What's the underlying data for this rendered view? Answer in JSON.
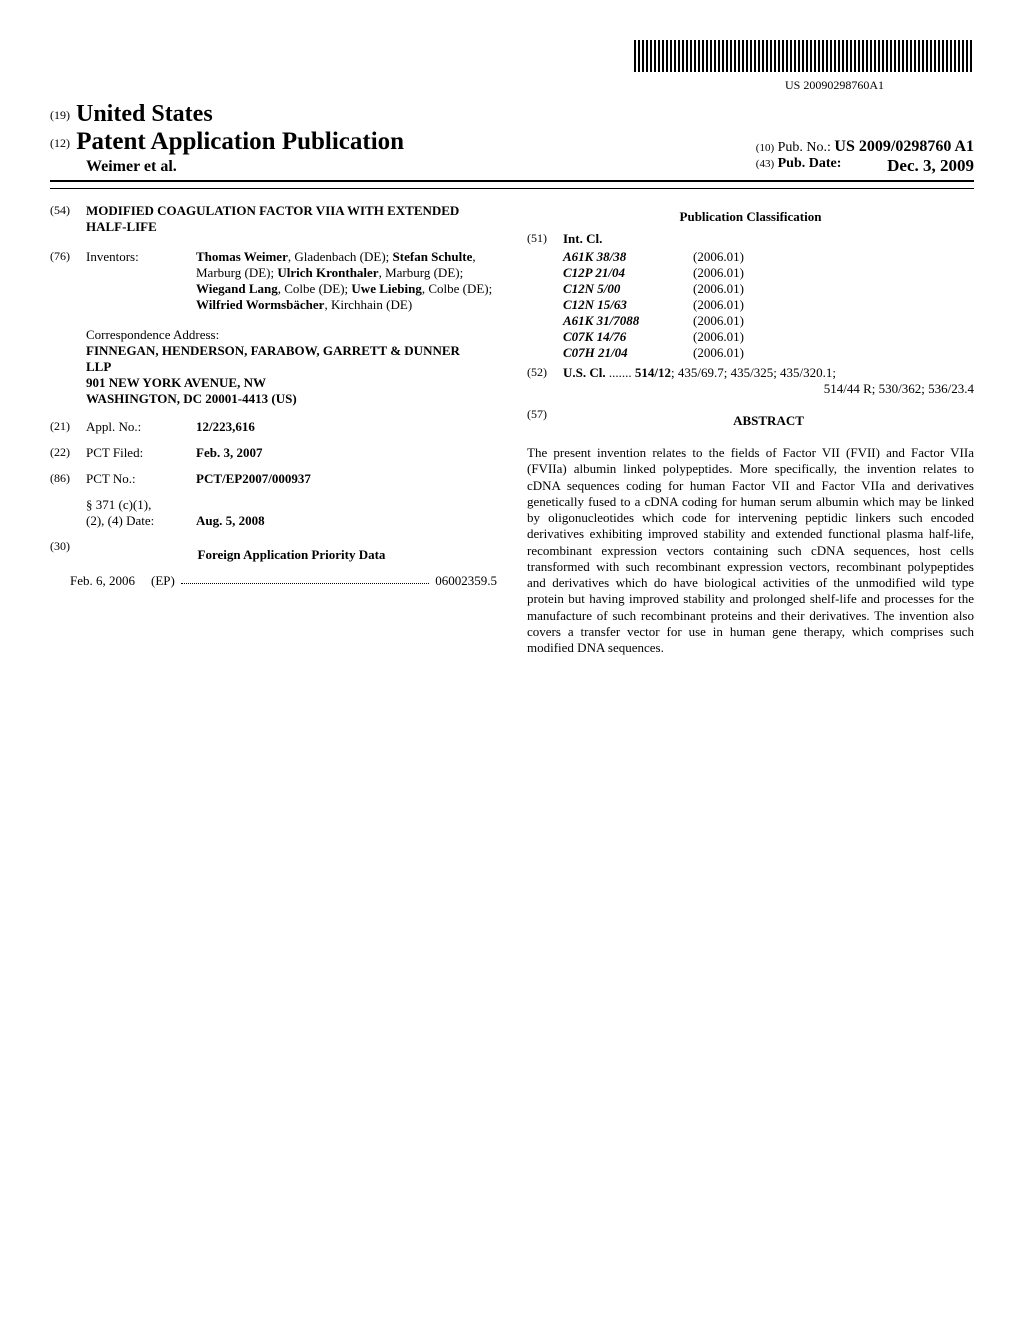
{
  "barcode_number": "US 20090298760A1",
  "country_header": {
    "code19": "(19)",
    "country": "United States",
    "code12": "(12)",
    "pap": "Patent Application Publication",
    "authors": "Weimer et al."
  },
  "pub_info": {
    "code10": "(10)",
    "pubno_label": "Pub. No.:",
    "pubno": "US 2009/0298760 A1",
    "code43": "(43)",
    "pubdate_label": "Pub. Date:",
    "pubdate": "Dec. 3, 2009"
  },
  "left_col": {
    "title_code": "(54)",
    "title": "MODIFIED COAGULATION FACTOR VIIA WITH EXTENDED HALF-LIFE",
    "inventors_code": "(76)",
    "inventors_label": "Inventors:",
    "inventors_html": "Thomas Weimer, Gladenbach (DE); Stefan Schulte, Marburg (DE); Ulrich Kronthaler, Marburg (DE); Wiegand Lang, Colbe (DE); Uwe Liebing, Colbe (DE); Wilfried Wormsbächer, Kirchhain (DE)",
    "correspondence_label": "Correspondence Address:",
    "correspondence": "FINNEGAN, HENDERSON, FARABOW, GARRETT & DUNNER\nLLP\n901 NEW YORK AVENUE, NW\nWASHINGTON, DC 20001-4413 (US)",
    "appl_code": "(21)",
    "appl_label": "Appl. No.:",
    "appl_no": "12/223,616",
    "pctfiled_code": "(22)",
    "pctfiled_label": "PCT Filed:",
    "pctfiled": "Feb. 3, 2007",
    "pctno_code": "(86)",
    "pctno_label": "PCT No.:",
    "pctno": "PCT/EP2007/000937",
    "s371_label": "§ 371 (c)(1),\n(2), (4) Date:",
    "s371_date": "Aug. 5, 2008",
    "foreign_code": "(30)",
    "foreign_title": "Foreign Application Priority Data",
    "priority_date": "Feb. 6, 2006",
    "priority_cc": "(EP)",
    "priority_num": "06002359.5"
  },
  "right_col": {
    "pubclass_title": "Publication Classification",
    "intcl_code": "(51)",
    "intcl_label": "Int. Cl.",
    "intcl": [
      {
        "cls": "A61K 38/38",
        "yr": "(2006.01)"
      },
      {
        "cls": "C12P 21/04",
        "yr": "(2006.01)"
      },
      {
        "cls": "C12N 5/00",
        "yr": "(2006.01)"
      },
      {
        "cls": "C12N 15/63",
        "yr": "(2006.01)"
      },
      {
        "cls": "A61K 31/7088",
        "yr": "(2006.01)"
      },
      {
        "cls": "C07K 14/76",
        "yr": "(2006.01)"
      },
      {
        "cls": "C07H 21/04",
        "yr": "(2006.01)"
      }
    ],
    "uscl_code": "(52)",
    "uscl_label": "U.S. Cl.",
    "uscl_line1": "514/12; 435/69.7; 435/325; 435/320.1;",
    "uscl_line2": "514/44 R; 530/362; 536/23.4",
    "abstract_code": "(57)",
    "abstract_title": "ABSTRACT",
    "abstract": "The present invention relates to the fields of Factor VII (FVII) and Factor VIIa (FVIIa) albumin linked polypeptides. More specifically, the invention relates to cDNA sequences coding for human Factor VII and Factor VIIa and derivatives genetically fused to a cDNA coding for human serum albumin which may be linked by oligonucleotides which code for intervening peptidic linkers such encoded derivatives exhibiting improved stability and extended functional plasma half-life, recombinant expression vectors containing such cDNA sequences, host cells transformed with such recombinant expression vectors, recombinant polypeptides and derivatives which do have biological activities of the unmodified wild type protein but having improved stability and prolonged shelf-life and processes for the manufacture of such recombinant proteins and their derivatives. The invention also covers a transfer vector for use in human gene therapy, which comprises such modified DNA sequences."
  }
}
